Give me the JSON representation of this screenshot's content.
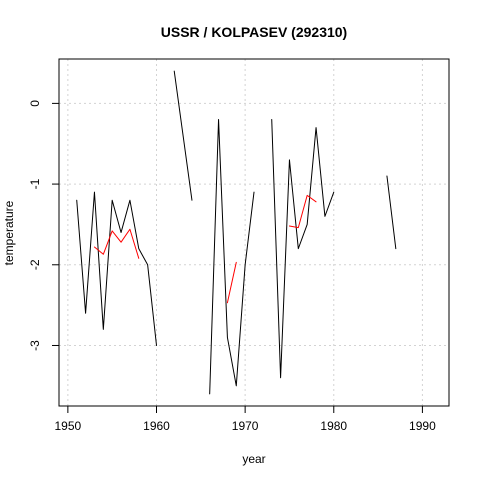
{
  "chart_data": {
    "type": "line",
    "title": "USSR / KOLPASEV (292310)",
    "xlabel": "year",
    "ylabel": "temperature",
    "xlim": [
      1949,
      1993
    ],
    "ylim": [
      -3.75,
      0.55
    ],
    "x_ticks": [
      1950,
      1960,
      1970,
      1980,
      1990
    ],
    "y_ticks": [
      -3,
      -2,
      -1,
      0
    ],
    "grid": true,
    "series": [
      {
        "color": "#000000",
        "segments": [
          [
            [
              1951,
              -1.2
            ],
            [
              1952,
              -2.6
            ],
            [
              1953,
              -1.1
            ],
            [
              1954,
              -2.8
            ],
            [
              1955,
              -1.2
            ],
            [
              1956,
              -1.6
            ],
            [
              1957,
              -1.2
            ],
            [
              1958,
              -1.8
            ],
            [
              1959,
              -2.0
            ],
            [
              1960,
              -3.0
            ]
          ],
          [
            [
              1962,
              0.4
            ],
            [
              1964,
              -1.2
            ]
          ],
          [
            [
              1966,
              -3.6
            ],
            [
              1967,
              -0.2
            ],
            [
              1968,
              -2.9
            ],
            [
              1969,
              -3.5
            ],
            [
              1970,
              -2.0
            ],
            [
              1971,
              -1.1
            ]
          ],
          [
            [
              1973,
              -0.2
            ],
            [
              1974,
              -3.4
            ],
            [
              1975,
              -0.7
            ],
            [
              1976,
              -1.8
            ],
            [
              1977,
              -1.5
            ],
            [
              1978,
              -0.3
            ],
            [
              1979,
              -1.4
            ],
            [
              1980,
              -1.1
            ]
          ],
          [
            [
              1986,
              -0.9
            ],
            [
              1987,
              -1.8
            ]
          ]
        ]
      },
      {
        "color": "#ff0000",
        "segments": [
          [
            [
              1953,
              -1.78
            ],
            [
              1954,
              -1.87
            ],
            [
              1955,
              -1.58
            ],
            [
              1956,
              -1.72
            ],
            [
              1957,
              -1.56
            ],
            [
              1958,
              -1.92
            ]
          ],
          [
            [
              1968,
              -2.47
            ],
            [
              1969,
              -1.97
            ]
          ],
          [
            [
              1975,
              -1.52
            ],
            [
              1976,
              -1.54
            ],
            [
              1977,
              -1.14
            ],
            [
              1978,
              -1.22
            ]
          ]
        ]
      }
    ]
  }
}
